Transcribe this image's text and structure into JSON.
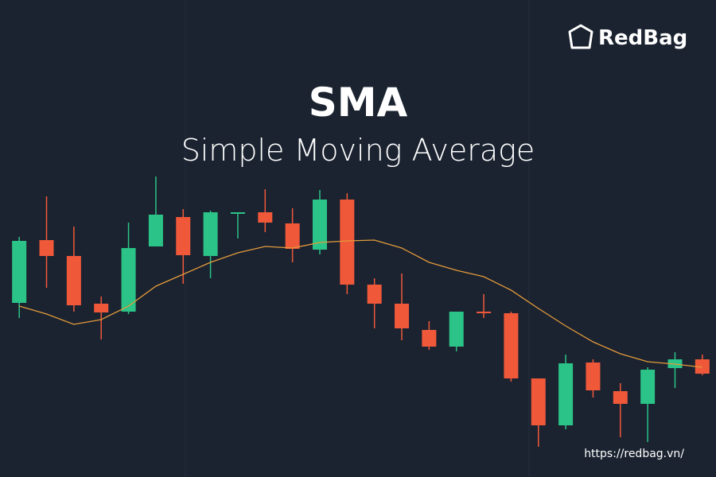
{
  "chart_data": {
    "type": "candlestick",
    "title": "SMA",
    "subtitle": "Simple Moving Average",
    "brand": "RedBag",
    "url": "https://redbag.vn/",
    "categories": [
      null,
      null,
      null,
      null,
      null,
      null,
      null,
      null,
      null,
      null,
      null,
      null,
      null,
      null,
      null,
      null,
      null,
      null,
      null,
      null,
      null,
      null,
      null,
      null,
      null,
      null
    ],
    "open": [
      21.9,
      29.8,
      27.8,
      21.8,
      20.8,
      29.0,
      32.7,
      27.8,
      33.1,
      33.3,
      31.9,
      28.6,
      34.9,
      24.2,
      21.8,
      18.5,
      16.4,
      20.8,
      20.6,
      12.4,
      6.5,
      14.4,
      10.8,
      9.2,
      13.7,
      14.8
    ],
    "high": [
      30.2,
      35.3,
      31.5,
      22.7,
      32.0,
      37.8,
      33.7,
      33.5,
      33.3,
      36.2,
      33.8,
      36.1,
      35.7,
      25.0,
      25.6,
      19.6,
      20.8,
      23.0,
      20.8,
      12.4,
      15.4,
      14.8,
      11.8,
      13.8,
      15.7,
      15.4
    ],
    "low": [
      20.0,
      23.8,
      20.8,
      17.3,
      20.5,
      29.0,
      24.3,
      25.0,
      30.0,
      30.8,
      27.0,
      28.0,
      23.0,
      18.7,
      17.2,
      16.0,
      15.8,
      20.0,
      12.0,
      3.8,
      6.0,
      10.0,
      5.0,
      4.4,
      11.2,
      12.8
    ],
    "close": [
      29.7,
      27.8,
      21.6,
      20.7,
      28.8,
      33.0,
      27.9,
      33.3,
      33.3,
      32.0,
      28.7,
      34.9,
      24.2,
      21.8,
      18.7,
      16.4,
      20.8,
      20.6,
      12.4,
      6.5,
      14.3,
      10.9,
      9.2,
      13.5,
      14.8,
      13.0
    ],
    "up_color": "#2bc387",
    "down_color": "#f0583a",
    "sma": {
      "color": "#e39a3b",
      "values": [
        21.5,
        20.5,
        19.2,
        19.8,
        21.5,
        24.0,
        25.5,
        27.0,
        28.2,
        29.0,
        28.8,
        29.5,
        29.7,
        29.8,
        28.8,
        27.0,
        26.0,
        25.2,
        23.5,
        21.2,
        19.0,
        17.0,
        15.5,
        14.5,
        14.2,
        13.8
      ]
    },
    "ylim": [
      0,
      60
    ]
  }
}
